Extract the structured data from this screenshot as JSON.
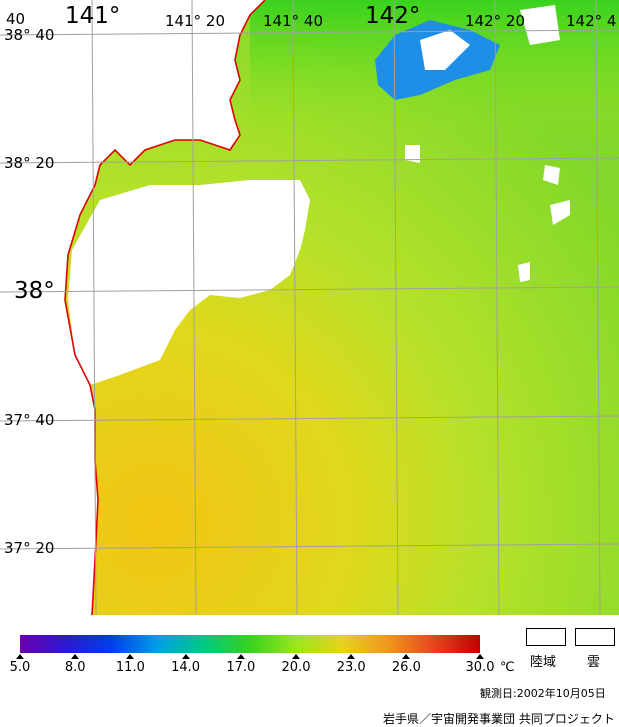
{
  "map": {
    "lon_labels": [
      "141°",
      "141° 20",
      "141° 40",
      "142°",
      "142° 20",
      "142° 4"
    ],
    "lat_labels": [
      "38° 40",
      "38° 20",
      "38°",
      "37° 40",
      "37° 20"
    ],
    "corner_label": "40"
  },
  "colorbar": {
    "tick_labels": [
      "5.0",
      "8.0",
      "11.0",
      "14.0",
      "17.0",
      "20.0",
      "23.0",
      "26.0",
      "30.0"
    ],
    "unit": "℃",
    "colors": [
      "#6a00b0",
      "#2a1acd",
      "#0040e8",
      "#009ee6",
      "#00c882",
      "#38d21e",
      "#9be61e",
      "#e6d21e",
      "#f0961e",
      "#e6461e",
      "#c00000"
    ]
  },
  "legend": {
    "land_label": "陸域",
    "cloud_label": "雲"
  },
  "observation_date": "観測日:2002年10月05日",
  "credit": "岩手県／宇宙開発事業団 共同プロジェクト"
}
